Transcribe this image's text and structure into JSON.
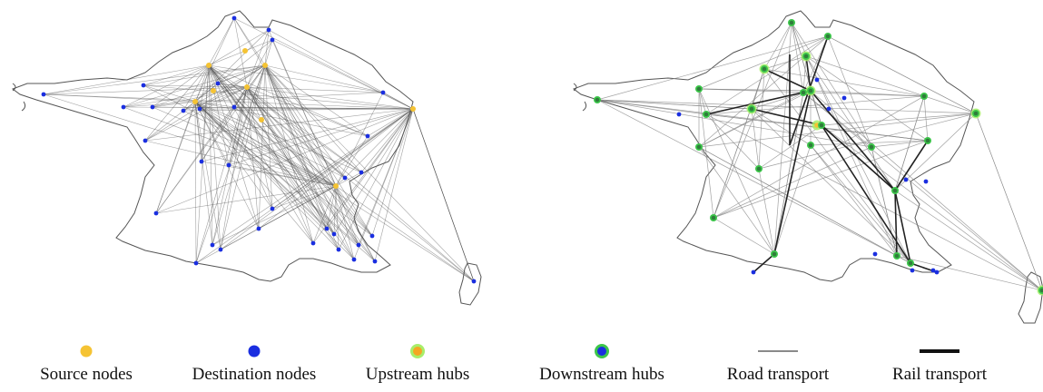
{
  "legend": {
    "source": "Source nodes",
    "destination": "Destination nodes",
    "upstream": "Upstream hubs",
    "downstream": "Downstream hubs",
    "road": "Road transport",
    "rail": "Rail transport"
  },
  "colors": {
    "source": "#f5c333",
    "destination": "#1a2ee0",
    "hub_upstream_ring": "#a8ee6a",
    "hub_downstream_fill": "#2f7d3b",
    "hub_downstream_ring": "#3cc64a",
    "road": "#8a8a8a",
    "rail": "#222222",
    "border": "#555555"
  }
}
